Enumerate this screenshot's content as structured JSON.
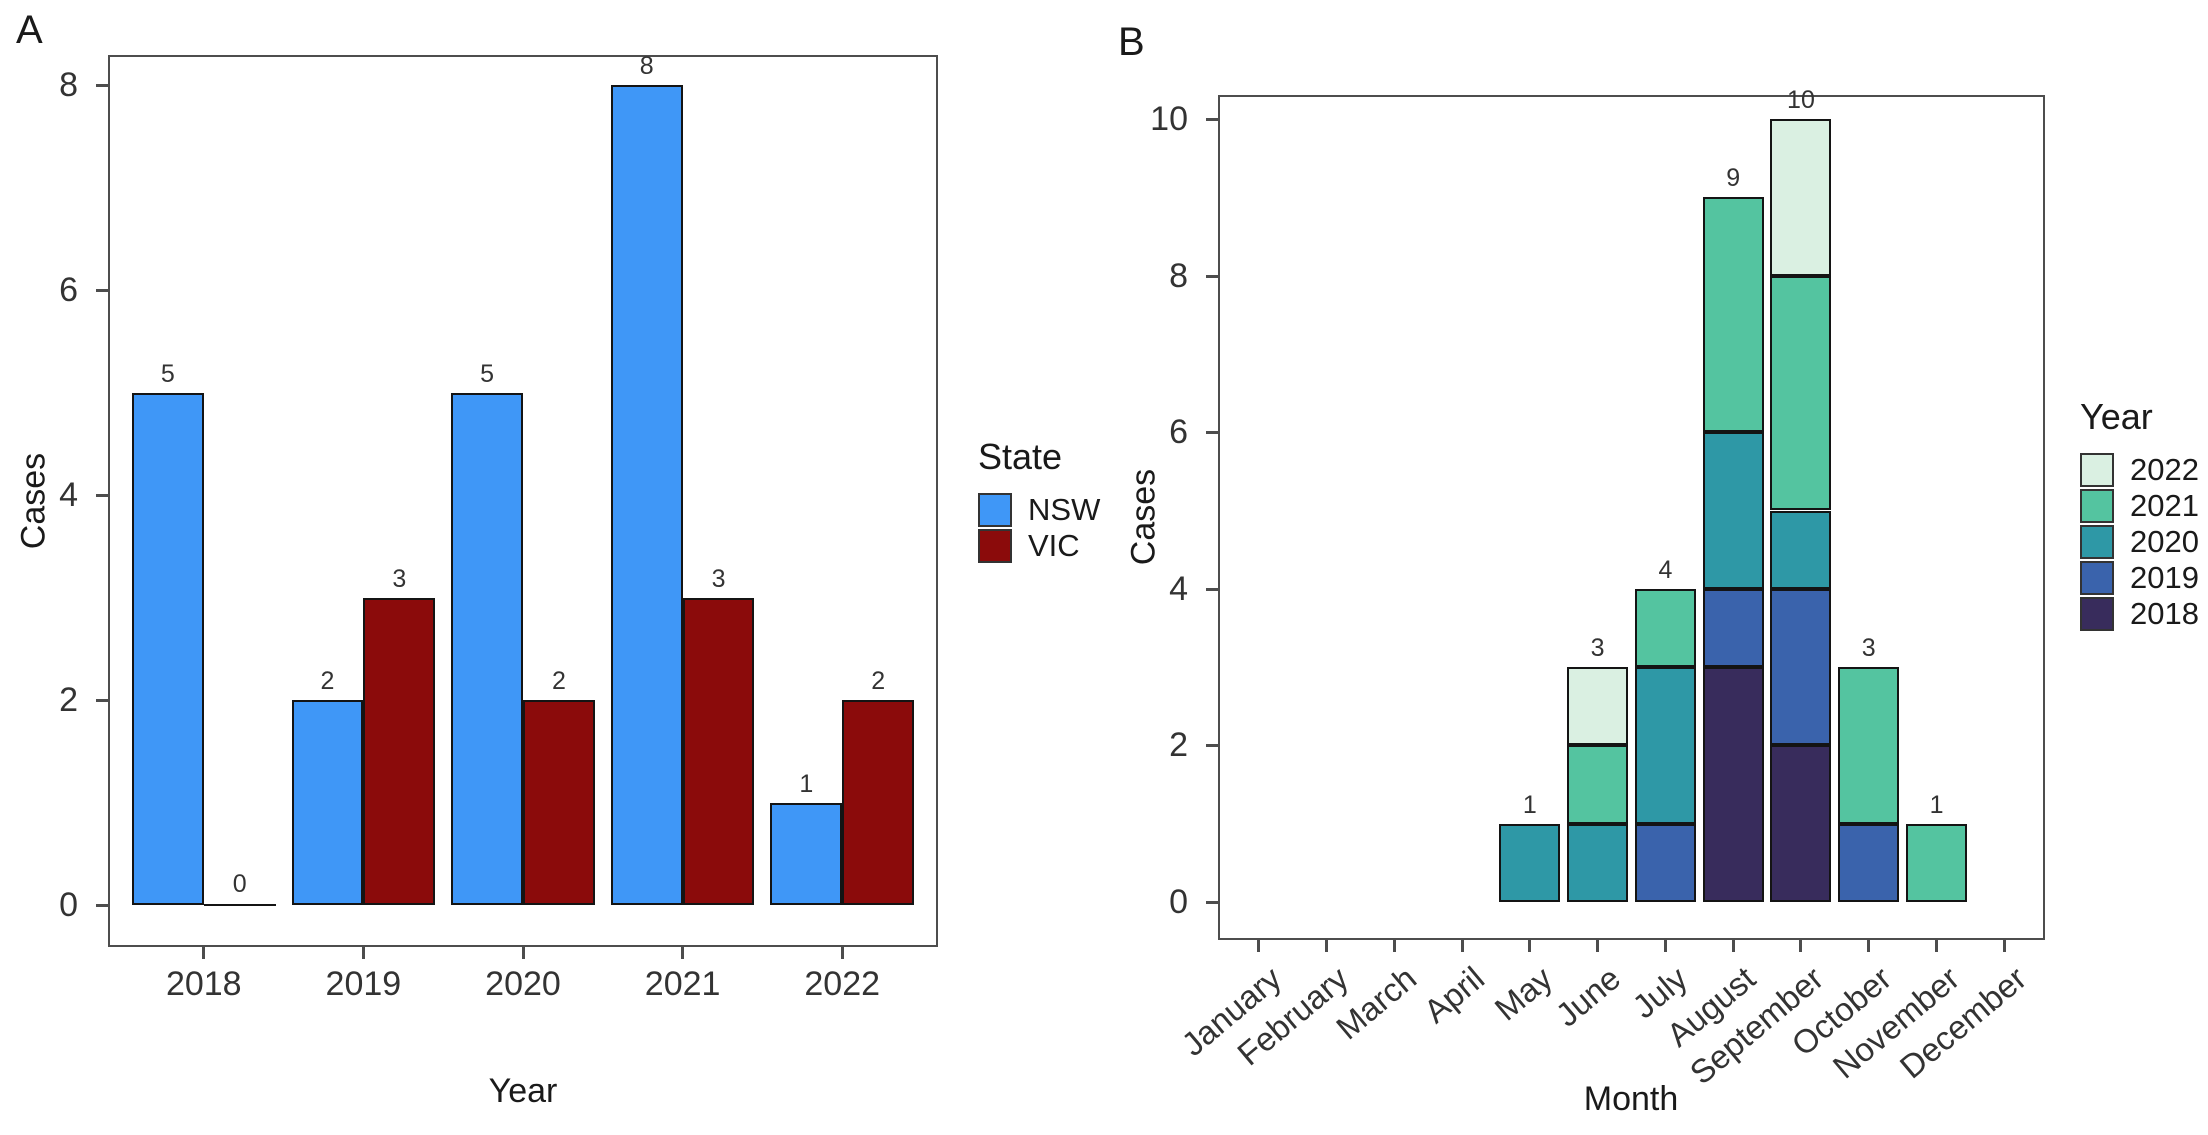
{
  "figure": {
    "background": "#ffffff",
    "panel_border_color": "#4d4d4d",
    "bar_border_color": "#141414"
  },
  "chart_data": [
    {
      "type": "bar",
      "panel_label": "A",
      "xlabel": "Year",
      "ylabel": "Cases",
      "categories": [
        "2018",
        "2019",
        "2020",
        "2021",
        "2022"
      ],
      "series": [
        {
          "name": "NSW",
          "color": "#3F97F7",
          "values": [
            5,
            2,
            5,
            8,
            1
          ]
        },
        {
          "name": "VIC",
          "color": "#8B0B0B",
          "values": [
            0,
            3,
            2,
            3,
            2
          ]
        }
      ],
      "bar_value_labels": {
        "NSW": [
          "5",
          "2",
          "5",
          "8",
          "1"
        ],
        "VIC": [
          "0",
          "3",
          "2",
          "3",
          "2"
        ]
      },
      "yticks": [
        "0",
        "2",
        "4",
        "6",
        "8"
      ],
      "ylim": [
        0,
        8.3
      ],
      "grid": false,
      "legend_title": "State",
      "legend_position": "right",
      "legend_items": [
        {
          "label": "NSW",
          "color": "#3F97F7"
        },
        {
          "label": "VIC",
          "color": "#8B0B0B"
        }
      ]
    },
    {
      "type": "bar",
      "stacked": true,
      "panel_label": "B",
      "xlabel": "Month",
      "ylabel": "Cases",
      "categories": [
        "January",
        "February",
        "March",
        "April",
        "May",
        "June",
        "July",
        "August",
        "September",
        "October",
        "November",
        "December"
      ],
      "series": [
        {
          "name": "2018",
          "color": "#382C5C",
          "values": [
            0,
            0,
            0,
            0,
            0,
            0,
            0,
            3,
            2,
            0,
            0,
            0
          ]
        },
        {
          "name": "2019",
          "color": "#3A63AC",
          "values": [
            0,
            0,
            0,
            0,
            0,
            0,
            1,
            1,
            2,
            1,
            0,
            0
          ]
        },
        {
          "name": "2020",
          "color": "#2E98A6",
          "values": [
            0,
            0,
            0,
            0,
            1,
            1,
            2,
            2,
            1,
            0,
            0,
            0
          ]
        },
        {
          "name": "2021",
          "color": "#54C4A0",
          "values": [
            0,
            0,
            0,
            0,
            0,
            1,
            1,
            3,
            3,
            2,
            1,
            0
          ]
        },
        {
          "name": "2022",
          "color": "#DAF0E2",
          "values": [
            0,
            0,
            0,
            0,
            0,
            1,
            0,
            0,
            2,
            0,
            0,
            0
          ]
        }
      ],
      "stack_total_labels": [
        "",
        "",
        "",
        "",
        "1",
        "3",
        "4",
        "9",
        "10",
        "3",
        "1",
        ""
      ],
      "yticks": [
        "0",
        "2",
        "4",
        "6",
        "8",
        "10"
      ],
      "ylim": [
        0,
        10.4
      ],
      "grid": false,
      "legend_title": "Year",
      "legend_position": "right",
      "legend_items": [
        {
          "label": "2022",
          "color": "#DAF0E2"
        },
        {
          "label": "2021",
          "color": "#54C4A0"
        },
        {
          "label": "2020",
          "color": "#2E98A6"
        },
        {
          "label": "2019",
          "color": "#3A63AC"
        },
        {
          "label": "2018",
          "color": "#382C5C"
        }
      ]
    }
  ]
}
